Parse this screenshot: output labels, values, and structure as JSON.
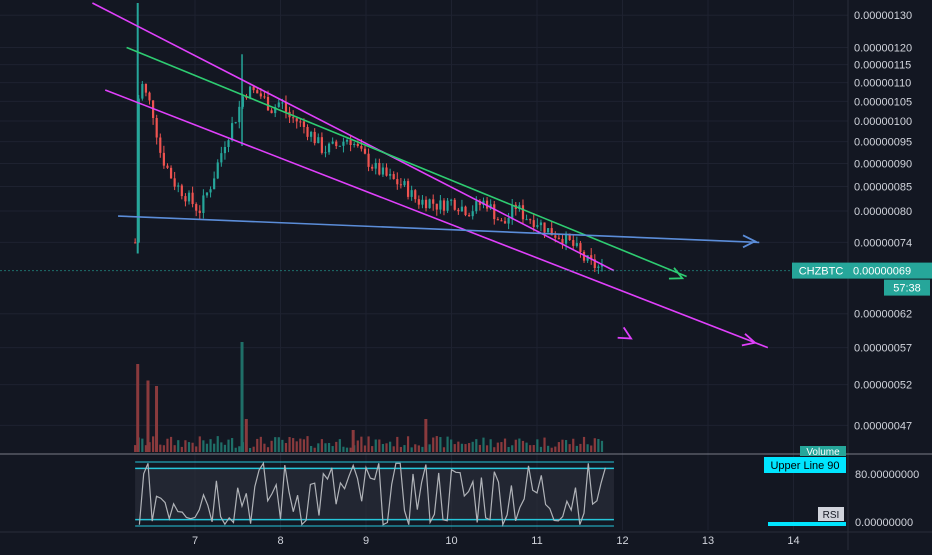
{
  "colors": {
    "background": "#131722",
    "grid": "#1e2230",
    "up": "#26a69a",
    "down": "#ef5350",
    "up_volume": "#1f6f68",
    "down_volume": "#8a3a3d",
    "trendline_magenta": "#e040fb",
    "trendline_green": "#2ecc71",
    "trendline_blue": "#5b8dd9",
    "rsi_line": "#b0b3b8",
    "rsi_band": "#26c6da",
    "price_label": "#26a69a",
    "axis_text": "#d1d4dc"
  },
  "chart_data": {
    "type": "candlestick",
    "symbol": "CHZBTC",
    "x": {
      "ticks": [
        "7",
        "8",
        "9",
        "10",
        "11",
        "12",
        "13",
        "14"
      ]
    },
    "y": {
      "scale": "log",
      "ticks": [
        "0.00000130",
        "0.00000120",
        "0.00000115",
        "0.00000110",
        "0.00000105",
        "0.00000100",
        "0.00000095",
        "0.00000090",
        "0.00000085",
        "0.00000080",
        "0.00000074",
        "0.00000062",
        "0.00000057",
        "0.00000052",
        "0.00000047"
      ],
      "range": [
        4.4e-07,
        1.35e-06
      ]
    },
    "last_price": "0.00000069",
    "countdown": "57:38",
    "anchors": {
      "day": [
        6.3,
        6.35,
        6.4,
        6.5,
        6.6,
        6.75,
        6.9,
        7.05,
        7.2,
        7.35,
        7.5,
        7.55,
        7.62,
        7.75,
        7.9,
        8.0,
        8.1,
        8.2,
        8.35,
        8.5,
        8.65,
        8.8,
        8.95,
        9.1,
        9.25,
        9.45,
        9.6,
        9.75,
        9.85,
        10.0,
        10.2,
        10.4,
        10.6,
        10.75,
        10.85,
        11.0,
        11.15,
        11.3,
        11.45,
        11.55,
        11.65,
        11.8
      ],
      "price": [
        7.4e-07,
        1.12e-06,
        1.08e-06,
        1.03e-06,
        9.2e-07,
        8.6e-07,
        8.3e-07,
        8e-07,
        8.6e-07,
        9.5e-07,
        1.02e-06,
        1.06e-06,
        1.08e-06,
        1.07e-06,
        1.03e-06,
        1.05e-06,
        1.01e-06,
        1e-06,
        9.7e-07,
        9.3e-07,
        9.4e-07,
        9.6e-07,
        9.2e-07,
        8.9e-07,
        8.7e-07,
        8.5e-07,
        8.2e-07,
        8.2e-07,
        8.1e-07,
        8.2e-07,
        8e-07,
        8.2e-07,
        7.7e-07,
        8.1e-07,
        7.9e-07,
        7.8e-07,
        7.6e-07,
        7.5e-07,
        7.3e-07,
        7.1e-07,
        7e-07,
        6.9e-07
      ]
    },
    "trendlines": [
      {
        "color_key": "trendline_magenta",
        "points": [
          [
            5.8,
            1.34e-06
          ],
          [
            11.9,
            6.9e-07
          ]
        ]
      },
      {
        "color_key": "trendline_magenta",
        "points": [
          [
            5.95,
            1.08e-06
          ],
          [
            13.7,
            5.7e-07
          ]
        ]
      },
      {
        "color_key": "trendline_green",
        "points": [
          [
            6.2,
            1.2e-06
          ],
          [
            12.75,
            6.8e-07
          ]
        ]
      },
      {
        "color_key": "trendline_blue",
        "points": [
          [
            6.1,
            7.9e-07
          ],
          [
            13.6,
            7.4e-07
          ]
        ]
      }
    ],
    "arrows": [
      {
        "color_key": "trendline_magenta",
        "at": [
          12.1,
          5.83e-07
        ],
        "angle": 30
      },
      {
        "color_key": "trendline_magenta",
        "at": [
          13.55,
          5.77e-07
        ],
        "angle": 15
      },
      {
        "color_key": "trendline_green",
        "at": [
          12.7,
          6.77e-07
        ],
        "angle": 25
      },
      {
        "color_key": "trendline_blue",
        "at": [
          13.55,
          7.42e-07
        ],
        "angle": 0
      }
    ],
    "volume": {
      "label": "Volume",
      "spikes": [
        [
          6.33,
          0.8
        ],
        [
          6.45,
          0.65
        ],
        [
          6.55,
          0.6
        ],
        [
          7.55,
          1.0
        ],
        [
          7.6,
          0.3
        ],
        [
          8.85,
          0.2
        ],
        [
          9.7,
          0.3
        ]
      ]
    },
    "rsi": {
      "label": "RSI",
      "upper_line_label": "Upper Line 90",
      "upper_line": 90,
      "lower_line": 10,
      "axis_ticks": [
        "80.00000000",
        "0.00000000"
      ]
    }
  }
}
